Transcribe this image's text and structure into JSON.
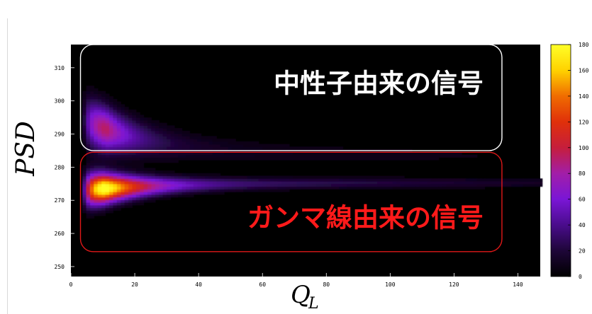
{
  "chart_data": {
    "type": "heatmap",
    "title": "",
    "xlabel": "Q_L",
    "ylabel": "PSD",
    "xlim": [
      0,
      147
    ],
    "ylim": [
      247,
      317
    ],
    "zlim": [
      0,
      180
    ],
    "x_ticks": [
      "0",
      "20",
      "40",
      "60",
      "80",
      "100",
      "120",
      "140"
    ],
    "x_tick_values": [
      0,
      20,
      40,
      60,
      80,
      100,
      120,
      140
    ],
    "y_ticks": [
      "250",
      "260",
      "270",
      "280",
      "290",
      "300",
      "310"
    ],
    "y_tick_values": [
      250,
      260,
      270,
      280,
      290,
      300,
      310
    ],
    "colorbar_ticks": [
      "0",
      "20",
      "40",
      "60",
      "80",
      "100",
      "120",
      "140",
      "160",
      "180"
    ],
    "colorbar_tick_values": [
      0,
      20,
      40,
      60,
      80,
      100,
      120,
      140,
      160,
      180
    ],
    "colormap": [
      "#000000",
      "#1e0638",
      "#4a0c8c",
      "#7a16d6",
      "#a21ea8",
      "#c61e3c",
      "#e0300a",
      "#f06c00",
      "#ffd200",
      "#ffff28"
    ],
    "background": "#000000",
    "bands": [
      {
        "name": "gamma",
        "center_start": 272.8,
        "center_end": 275.3,
        "width_start": 4.2,
        "width_end": 1.1,
        "peak_value": 180,
        "peak_x": 10.5
      },
      {
        "name": "neutron",
        "center_start": 296.0,
        "center_end": 283.5,
        "width_start": 6.0,
        "width_end": 2.5,
        "peak_value": 90,
        "peak_x": 11.0
      }
    ],
    "annotations": [
      {
        "text": "中性子由来の信号",
        "color": "#ffffff",
        "box_color": "#ffffff",
        "x_range": [
          3,
          135
        ],
        "y_range": [
          285,
          317
        ]
      },
      {
        "text": "ガンマ線由来の信号",
        "color": "#ff1a1a",
        "box_color": "#e01818",
        "x_range": [
          3,
          135
        ],
        "y_range": [
          254.5,
          284.5
        ]
      }
    ]
  }
}
